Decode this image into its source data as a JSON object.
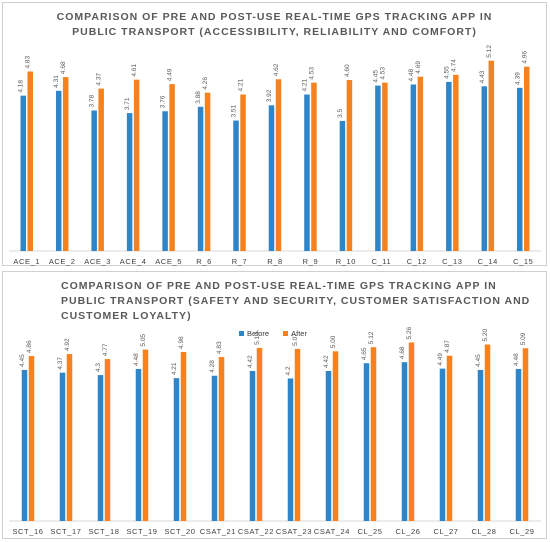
{
  "colors": {
    "before": "#2e86c9",
    "after": "#f5821f",
    "axis": "#d9d9d9"
  },
  "chart_data": [
    {
      "type": "bar",
      "title_line1": "COMPARISON OF PRE AND POST-USE REAL-TIME GPS TRACKING APP IN",
      "title_line2": "PUBLIC TRANSPORT   (ACCESSIBILITY, RELIABILITY AND COMFORT)",
      "categories": [
        "ACE_1",
        "ACE_2",
        "ACE_3",
        "ACE_4",
        "ACE_5",
        "R_6",
        "R_7",
        "R_8",
        "R_9",
        "R_10",
        "C_11",
        "C_12",
        "C_13",
        "C_14",
        "C_15"
      ],
      "series": [
        {
          "name": "",
          "values": [
            4.18,
            4.31,
            3.78,
            3.71,
            3.76,
            3.88,
            3.51,
            3.92,
            4.21,
            3.5,
            4.45,
            4.48,
            4.55,
            4.43,
            4.39
          ]
        },
        {
          "name": "",
          "values": [
            4.83,
            4.68,
            4.37,
            4.61,
            4.49,
            4.26,
            4.21,
            4.62,
            4.53,
            4.6,
            4.53,
            4.69,
            4.74,
            5.12,
            4.96
          ]
        }
      ],
      "value_labels": [
        [
          "4.18",
          "4.31",
          "3.78",
          "3.71",
          "3.76",
          "3.88",
          "3.51",
          "3.92",
          "4.21",
          "3.5",
          "4.45",
          "4.48",
          "4.55",
          "4.43",
          "4.39"
        ],
        [
          "4.83",
          "4.68",
          "4.37",
          "4.61",
          "4.49",
          "4.26",
          "4.21",
          "4.62",
          "4.53",
          "4.60",
          "4.53",
          "4.69",
          "4.74",
          "5.12",
          "4.96"
        ]
      ],
      "ylim": [
        0,
        6
      ]
    },
    {
      "type": "bar",
      "title_line1": "COMPARISON OF PRE AND POST-USE REAL-TIME GPS TRACKING APP IN",
      "title_line2": "PUBLIC TRANSPORT   (SAFETY AND SECURITY, CUSTOMER SATISFACTION AND",
      "title_line3": "CUSTOMER LOYALTY)",
      "legend": [
        "Before",
        "After"
      ],
      "legend_position": "top-center",
      "categories": [
        "SCT_16",
        "SCT_17",
        "SCT_18",
        "SCT_19",
        "SCT_20",
        "CSAT_21",
        "CSAT_22",
        "CSAT_23",
        "CSAT_24",
        "CL_25",
        "CL_26",
        "CL_27",
        "CL_28",
        "CL_29"
      ],
      "series": [
        {
          "name": "Before",
          "values": [
            4.45,
            4.37,
            4.3,
            4.48,
            4.21,
            4.28,
            4.42,
            4.2,
            4.42,
            4.65,
            4.68,
            4.49,
            4.45,
            4.48
          ]
        },
        {
          "name": "After",
          "values": [
            4.86,
            4.92,
            4.77,
            5.05,
            4.98,
            4.83,
            5.1,
            5.07,
            5.0,
            5.12,
            5.26,
            4.87,
            5.2,
            5.09
          ]
        }
      ],
      "value_labels": [
        [
          "4.45",
          "4.37",
          "4.3",
          "4.48",
          "4.21",
          "4.28",
          "4.42",
          "4.2",
          "4.42",
          "4.65",
          "4.68",
          "4.49",
          "4.45",
          "4.48"
        ],
        [
          "4.86",
          "4.92",
          "4.77",
          "5.05",
          "4.98",
          "4.83",
          "5.10",
          "5.07",
          "5.00",
          "5.12",
          "5.26",
          "4.87",
          "5.20",
          "5.09"
        ]
      ],
      "ylim": [
        0,
        6.6
      ]
    }
  ]
}
